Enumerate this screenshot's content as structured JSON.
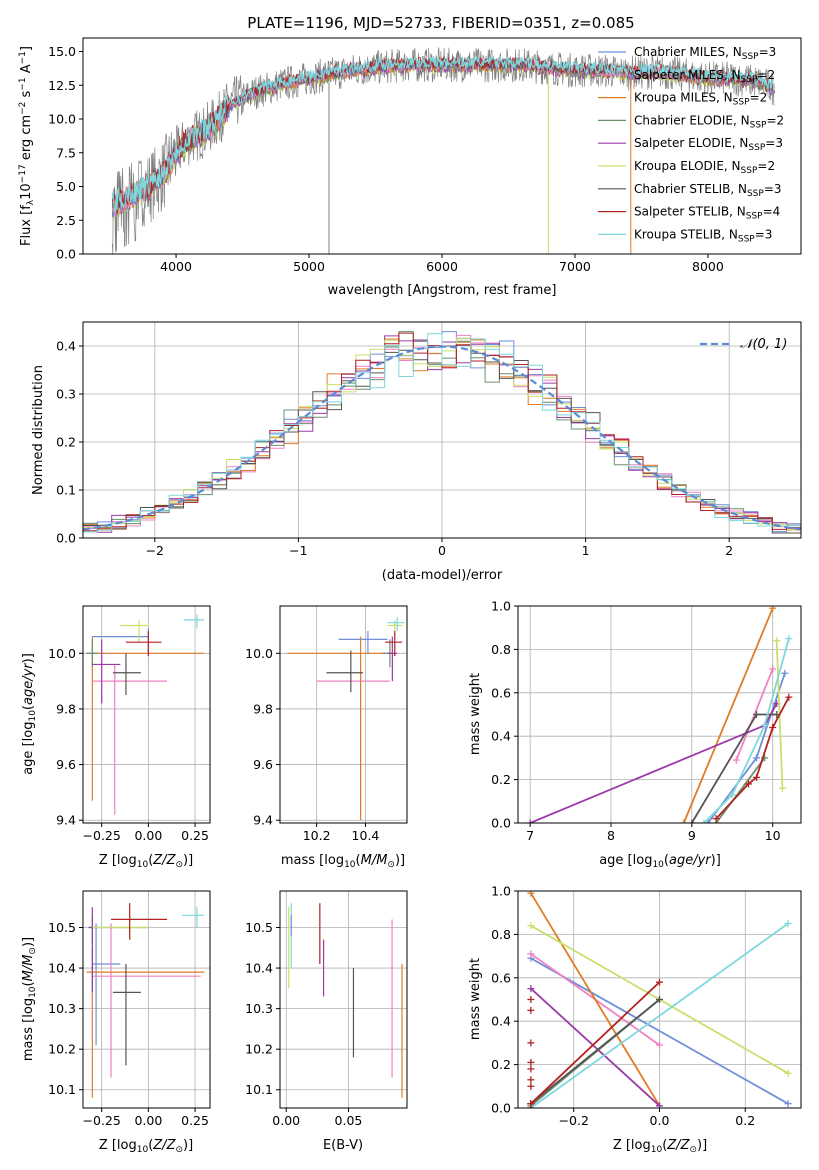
{
  "figure": {
    "title": "PLATE=1196, MJD=52733, FIBERID=0351, z=0.085"
  },
  "colors": {
    "Chabrier MILES": "#6f8fd8",
    "Salpeter MILES": "#ee82c4",
    "Kroupa MILES": "#e07c26",
    "Chabrier ELODIE": "#6b8f6b",
    "Salpeter ELODIE": "#9b3aa8",
    "Kroupa ELODIE": "#c8e06a",
    "Chabrier STELIB": "#555555",
    "Salpeter STELIB": "#b22222",
    "Kroupa STELIB": "#7fd8dc",
    "data": "#808080",
    "gaussian": "#5b8ad6"
  },
  "chart_data": [
    {
      "type": "line",
      "panel": "spectrum",
      "title": "PLATE=1196, MJD=52733, FIBERID=0351, z=0.085",
      "xlabel": "wavelength [Angstrom, rest frame]",
      "ylabel": "Flux [f_λ 10^−17 erg cm^−2 s^−1 A^−1]",
      "xlim": [
        3300,
        8700
      ],
      "ylim": [
        0,
        16
      ],
      "xticks": [
        4000,
        5000,
        6000,
        7000,
        8000
      ],
      "yticks": [
        0.0,
        2.5,
        5.0,
        7.5,
        10.0,
        12.5,
        15.0
      ],
      "legend_position": "upper-right",
      "legend": [
        {
          "model": "Chabrier MILES",
          "n": "3"
        },
        {
          "model": "Salpeter MILES",
          "n": "2"
        },
        {
          "model": "Kroupa MILES",
          "n": "2"
        },
        {
          "model": "Chabrier ELODIE",
          "n": "2"
        },
        {
          "model": "Salpeter ELODIE",
          "n": "3"
        },
        {
          "model": "Kroupa ELODIE",
          "n": "2"
        },
        {
          "model": "Chabrier STELIB",
          "n": "3"
        },
        {
          "model": "Salpeter STELIB",
          "n": "4"
        },
        {
          "model": "Kroupa STELIB",
          "n": "3"
        }
      ],
      "continuum": {
        "x": [
          3520,
          3600,
          3700,
          3800,
          3900,
          4000,
          4100,
          4200,
          4300,
          4400,
          4600,
          4800,
          5000,
          5200,
          5400,
          5600,
          5800,
          6000,
          6200,
          6400,
          6600,
          6800,
          7000,
          7200,
          7400,
          7600,
          7800,
          8000,
          8200,
          8400,
          8500
        ],
        "y": [
          3.5,
          4.0,
          4.5,
          5.0,
          5.8,
          7.5,
          8.5,
          9.0,
          9.8,
          11.0,
          12.0,
          12.6,
          13.0,
          13.4,
          13.7,
          13.9,
          14.0,
          14.0,
          14.0,
          14.0,
          14.0,
          13.8,
          13.6,
          13.6,
          13.4,
          13.5,
          13.3,
          13.0,
          13.0,
          12.7,
          12.2
        ]
      },
      "data_spikes": [
        {
          "x": 5150,
          "y": [
            0,
            13
          ]
        },
        {
          "x": 6800,
          "y": [
            0,
            14
          ]
        },
        {
          "x": 7420,
          "y": [
            0,
            13
          ]
        }
      ]
    },
    {
      "type": "histogram",
      "panel": "residuals",
      "xlabel": "(data-model)/error",
      "ylabel": "Normed distribution",
      "xlim": [
        -2.5,
        2.5
      ],
      "ylim": [
        0,
        0.45
      ],
      "xticks": [
        -2,
        -1,
        0,
        1,
        2
      ],
      "yticks": [
        0.0,
        0.1,
        0.2,
        0.3,
        0.4
      ],
      "legend_position": "upper-right",
      "legend": "𝒩(0, 1)",
      "bin_width": 0.1
    },
    {
      "type": "errorbar",
      "panel": "age-vs-Z",
      "xlabel": "Z [log10(Z/Z⊙)]",
      "ylabel": "age [log10(age/yr)]",
      "xlim": [
        -0.35,
        0.33
      ],
      "ylim": [
        9.39,
        10.17
      ],
      "xticks": [
        -0.25,
        0.0,
        0.25
      ],
      "yticks": [
        9.4,
        9.6,
        9.8,
        10.0
      ],
      "points": [
        {
          "model": "Chabrier MILES",
          "x": 0.0,
          "xerr": [
            0.3,
            0.0
          ],
          "y": 10.06,
          "yerr": [
            0.06,
            0.03
          ]
        },
        {
          "model": "Salpeter MILES",
          "x": -0.18,
          "xerr": [
            0.12,
            0.28
          ],
          "y": 9.9,
          "yerr": [
            0.48,
            0.06
          ]
        },
        {
          "model": "Kroupa MILES",
          "x": -0.3,
          "xerr": [
            0.03,
            0.6
          ],
          "y": 10.0,
          "yerr": [
            0.53,
            0.06
          ]
        },
        {
          "model": "Chabrier ELODIE",
          "x": -0.3,
          "xerr": [
            0.03,
            0.03
          ],
          "y": 10.0,
          "yerr": [
            0.05,
            0.05
          ]
        },
        {
          "model": "Salpeter ELODIE",
          "x": -0.25,
          "xerr": [
            0.05,
            0.1
          ],
          "y": 9.96,
          "yerr": [
            0.14,
            0.09
          ]
        },
        {
          "model": "Kroupa ELODIE",
          "x": -0.05,
          "xerr": [
            0.1,
            0.05
          ],
          "y": 10.1,
          "yerr": [
            0.06,
            0.02
          ]
        },
        {
          "model": "Chabrier STELIB",
          "x": -0.12,
          "xerr": [
            0.07,
            0.08
          ],
          "y": 9.93,
          "yerr": [
            0.08,
            0.07
          ]
        },
        {
          "model": "Salpeter STELIB",
          "x": 0.0,
          "xerr": [
            0.12,
            0.07
          ],
          "y": 10.04,
          "yerr": [
            0.05,
            0.04
          ]
        },
        {
          "model": "Kroupa STELIB",
          "x": 0.26,
          "xerr": [
            0.07,
            0.04
          ],
          "y": 10.12,
          "yerr": [
            0.03,
            0.02
          ]
        }
      ]
    },
    {
      "type": "errorbar",
      "panel": "age-vs-mass",
      "xlabel": "mass [log10(M/M⊙)]",
      "ylabel": "",
      "xlim": [
        10.05,
        10.57
      ],
      "ylim": [
        9.39,
        10.17
      ],
      "xticks": [
        10.2,
        10.4
      ],
      "yticks": [
        9.4,
        9.6,
        9.8,
        10.0
      ],
      "points": [
        {
          "model": "Chabrier MILES",
          "x": 10.41,
          "xerr": [
            0.12,
            0.08
          ],
          "y": 10.05,
          "yerr": [
            0.05,
            0.03
          ]
        },
        {
          "model": "Salpeter MILES",
          "x": 10.38,
          "xerr": [
            0.18,
            0.12
          ],
          "y": 9.9,
          "yerr": [
            0.48,
            0.05
          ]
        },
        {
          "model": "Kroupa MILES",
          "x": 10.38,
          "xerr": [
            0.3,
            0.1
          ],
          "y": 10.0,
          "yerr": [
            0.6,
            0.06
          ]
        },
        {
          "model": "Chabrier ELODIE",
          "x": 10.5,
          "xerr": [
            0.03,
            0.02
          ],
          "y": 10.0,
          "yerr": [
            0.05,
            0.05
          ]
        },
        {
          "model": "Salpeter ELODIE",
          "x": 10.51,
          "xerr": [
            0.02,
            0.02
          ],
          "y": 10.0,
          "yerr": [
            0.1,
            0.06
          ]
        },
        {
          "model": "Kroupa ELODIE",
          "x": 10.52,
          "xerr": [
            0.03,
            0.03
          ],
          "y": 10.1,
          "yerr": [
            0.04,
            0.02
          ]
        },
        {
          "model": "Chabrier STELIB",
          "x": 10.34,
          "xerr": [
            0.1,
            0.05
          ],
          "y": 9.93,
          "yerr": [
            0.07,
            0.08
          ]
        },
        {
          "model": "Salpeter STELIB",
          "x": 10.52,
          "xerr": [
            0.04,
            0.03
          ],
          "y": 10.04,
          "yerr": [
            0.05,
            0.04
          ]
        },
        {
          "model": "Kroupa STELIB",
          "x": 10.53,
          "xerr": [
            0.04,
            0.03
          ],
          "y": 10.11,
          "yerr": [
            0.03,
            0.02
          ]
        }
      ]
    },
    {
      "type": "line",
      "panel": "mass-weight-vs-age",
      "xlabel": "age [log10(age/yr)]",
      "ylabel": "mass weight",
      "xlim": [
        6.85,
        10.35
      ],
      "ylim": [
        0,
        1
      ],
      "xticks": [
        7,
        8,
        9,
        10
      ],
      "yticks": [
        0.0,
        0.2,
        0.4,
        0.6,
        0.8,
        1.0
      ],
      "series": [
        {
          "model": "Chabrier MILES",
          "x": [
            9.2,
            9.8,
            10.15
          ],
          "y": [
            0.0,
            0.3,
            0.69
          ]
        },
        {
          "model": "Salpeter MILES",
          "x": [
            9.55,
            10.0
          ],
          "y": [
            0.29,
            0.71
          ]
        },
        {
          "model": "Kroupa MILES",
          "x": [
            8.9,
            10.0
          ],
          "y": [
            0.0,
            0.99
          ]
        },
        {
          "model": "Chabrier ELODIE",
          "x": [
            9.3,
            9.9
          ],
          "y": [
            0.0,
            0.3
          ]
        },
        {
          "model": "Salpeter ELODIE",
          "x": [
            7.0,
            9.9,
            10.05
          ],
          "y": [
            0.0,
            0.45,
            0.55
          ]
        },
        {
          "model": "Kroupa ELODIE",
          "x": [
            10.05,
            10.12
          ],
          "y": [
            0.84,
            0.16
          ]
        },
        {
          "model": "Chabrier STELIB",
          "x": [
            9.0,
            9.8,
            10.05
          ],
          "y": [
            0.0,
            0.5,
            0.5
          ]
        },
        {
          "model": "Salpeter STELIB",
          "x": [
            9.3,
            9.7,
            9.8,
            10.0,
            10.2
          ],
          "y": [
            0.02,
            0.18,
            0.21,
            0.44,
            0.58
          ]
        },
        {
          "model": "Kroupa STELIB",
          "x": [
            9.15,
            9.5,
            9.9,
            10.2
          ],
          "y": [
            0.0,
            0.13,
            0.45,
            0.85
          ]
        }
      ]
    },
    {
      "type": "errorbar",
      "panel": "mass-vs-Z",
      "xlabel": "Z [log10(Z/Z⊙)]",
      "ylabel": "mass [log10(M/M⊙)]",
      "xlim": [
        -0.35,
        0.33
      ],
      "ylim": [
        10.055,
        10.59
      ],
      "xticks": [
        -0.25,
        0.0,
        0.25
      ],
      "yticks": [
        10.1,
        10.2,
        10.3,
        10.4,
        10.5
      ],
      "points": [
        {
          "model": "Chabrier MILES",
          "x": -0.28,
          "xerr": [
            0.02,
            0.13
          ],
          "y": 10.41,
          "yerr": [
            0.2,
            0.1
          ]
        },
        {
          "model": "Salpeter MILES",
          "x": -0.2,
          "xerr": [
            0.1,
            0.48
          ],
          "y": 10.38,
          "yerr": [
            0.25,
            0.13
          ]
        },
        {
          "model": "Kroupa MILES",
          "x": -0.3,
          "xerr": [
            0.03,
            0.6
          ],
          "y": 10.39,
          "yerr": [
            0.31,
            0.06
          ]
        },
        {
          "model": "Chabrier ELODIE",
          "x": -0.3,
          "xerr": [
            0.02,
            0.3
          ],
          "y": 10.5,
          "yerr": [
            0.04,
            0.03
          ]
        },
        {
          "model": "Salpeter ELODIE",
          "x": -0.3,
          "xerr": [
            0.02,
            0.03
          ],
          "y": 10.5,
          "yerr": [
            0.16,
            0.05
          ]
        },
        {
          "model": "Kroupa ELODIE",
          "x": -0.1,
          "xerr": [
            0.2,
            0.1
          ],
          "y": 10.5,
          "yerr": [
            0.03,
            0.03
          ]
        },
        {
          "model": "Chabrier STELIB",
          "x": -0.12,
          "xerr": [
            0.07,
            0.08
          ],
          "y": 10.34,
          "yerr": [
            0.18,
            0.07
          ]
        },
        {
          "model": "Salpeter STELIB",
          "x": -0.1,
          "xerr": [
            0.1,
            0.2
          ],
          "y": 10.52,
          "yerr": [
            0.05,
            0.04
          ]
        },
        {
          "model": "Kroupa STELIB",
          "x": 0.26,
          "xerr": [
            0.08,
            0.04
          ],
          "y": 10.53,
          "yerr": [
            0.03,
            0.02
          ]
        }
      ]
    },
    {
      "type": "errorbar",
      "panel": "mass-vs-ebv",
      "xlabel": "E(B-V)",
      "ylabel": "",
      "xlim": [
        -0.005,
        0.097
      ],
      "ylim": [
        10.055,
        10.59
      ],
      "xticks": [
        0.0,
        0.05
      ],
      "yticks": [
        10.1,
        10.2,
        10.3,
        10.4,
        10.5
      ],
      "points": [
        {
          "model": "Kroupa ELODIE",
          "x": 0.002,
          "yrange": [
            10.35,
            10.55
          ]
        },
        {
          "model": "Kroupa STELIB",
          "x": 0.004,
          "yrange": [
            10.4,
            10.56
          ]
        },
        {
          "model": "Chabrier MILES",
          "x": 0.004,
          "yrange": [
            10.48,
            10.53
          ]
        },
        {
          "model": "Salpeter STELIB",
          "x": 0.027,
          "yrange": [
            10.41,
            10.56
          ]
        },
        {
          "model": "Salpeter ELODIE",
          "x": 0.03,
          "yrange": [
            10.33,
            10.47
          ]
        },
        {
          "model": "Chabrier STELIB",
          "x": 0.054,
          "yrange": [
            10.18,
            10.4
          ]
        },
        {
          "model": "Salpeter MILES",
          "x": 0.085,
          "yrange": [
            10.13,
            10.52
          ]
        },
        {
          "model": "Kroupa MILES",
          "x": 0.093,
          "yrange": [
            10.08,
            10.41
          ]
        }
      ]
    },
    {
      "type": "line",
      "panel": "mass-weight-vs-Z",
      "xlabel": "Z [log10(Z/Z⊙)]",
      "ylabel": "mass weight",
      "xlim": [
        -0.33,
        0.33
      ],
      "ylim": [
        0,
        1
      ],
      "xticks": [
        -0.2,
        0.0,
        0.2
      ],
      "yticks": [
        0.0,
        0.2,
        0.4,
        0.6,
        0.8,
        1.0
      ],
      "series": [
        {
          "model": "Chabrier MILES",
          "x": [
            -0.3,
            0.3
          ],
          "y": [
            0.69,
            0.02
          ]
        },
        {
          "model": "Salpeter MILES",
          "x": [
            -0.3,
            0.0
          ],
          "y": [
            0.71,
            0.29
          ]
        },
        {
          "model": "Kroupa MILES",
          "x": [
            -0.3,
            0.0
          ],
          "y": [
            0.99,
            0.01
          ]
        },
        {
          "model": "Chabrier ELODIE",
          "x": [
            -0.3,
            0.0
          ],
          "y": [
            0.01,
            0.5
          ]
        },
        {
          "model": "Salpeter ELODIE",
          "x": [
            -0.3,
            0.0
          ],
          "y": [
            0.55,
            0.01
          ]
        },
        {
          "model": "Kroupa ELODIE",
          "x": [
            -0.3,
            0.3
          ],
          "y": [
            0.84,
            0.16
          ]
        },
        {
          "model": "Chabrier STELIB",
          "x": [
            -0.3,
            0.0
          ],
          "y": [
            0.02,
            0.5
          ]
        },
        {
          "model": "Salpeter STELIB",
          "x": [
            -0.3,
            0.0
          ],
          "y": [
            0.02,
            0.58
          ]
        },
        {
          "model": "Kroupa STELIB",
          "x": [
            -0.3,
            0.3
          ],
          "y": [
            0.0,
            0.85
          ]
        }
      ],
      "markers_at_minus_0_3": [
        0.0,
        0.02,
        0.1,
        0.13,
        0.18,
        0.21,
        0.3,
        0.45,
        0.5
      ]
    }
  ]
}
